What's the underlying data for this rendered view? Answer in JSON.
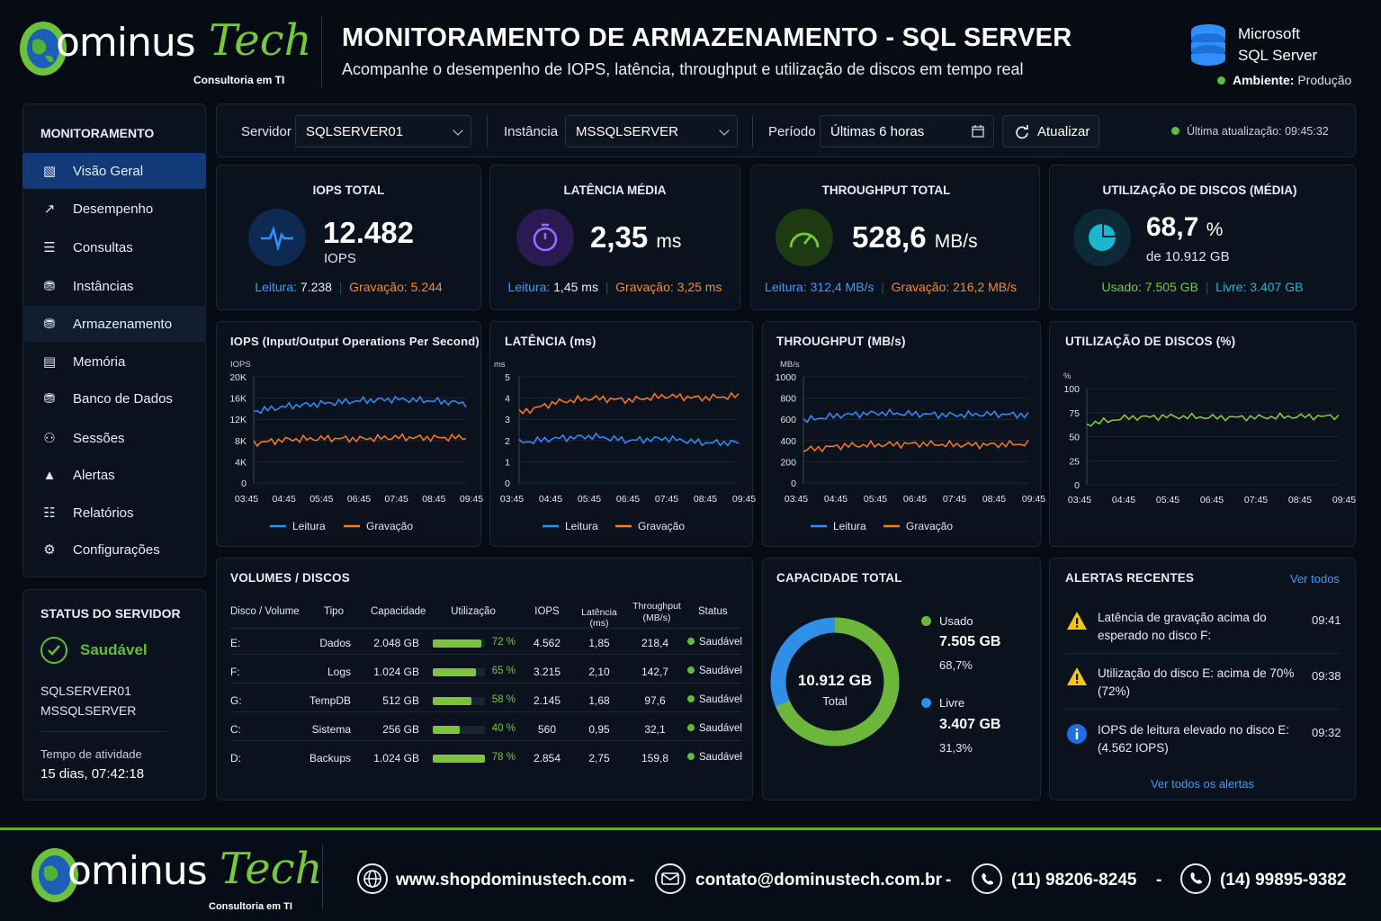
{
  "brand": {
    "name_a": "ominus",
    "name_b": "Tech",
    "tagline": "Consultoria em TI"
  },
  "header": {
    "title": "MONITORAMENTO DE ARMAZENAMENTO - SQL SERVER",
    "subtitle": "Acompanhe o desempenho de IOPS, latência, throughput e utilização de discos em tempo real",
    "product_line1": "Microsoft",
    "product_line2": "SQL Server",
    "env_label": "Ambiente:",
    "env_value": "Produção"
  },
  "sidebar": {
    "section": "MONITORAMENTO",
    "items": [
      {
        "label": "Visão Geral",
        "icon": "dashboard-icon"
      },
      {
        "label": "Desempenho",
        "icon": "line-chart-icon"
      },
      {
        "label": "Consultas",
        "icon": "list-icon"
      },
      {
        "label": "Instâncias",
        "icon": "database-icon"
      },
      {
        "label": "Armazenamento",
        "icon": "storage-icon"
      },
      {
        "label": "Memória",
        "icon": "memory-icon"
      },
      {
        "label": "Banco de Dados",
        "icon": "database-icon"
      },
      {
        "label": "Sessões",
        "icon": "users-icon"
      },
      {
        "label": "Alertas",
        "icon": "warning-icon"
      },
      {
        "label": "Relatórios",
        "icon": "report-icon"
      },
      {
        "label": "Configurações",
        "icon": "gear-icon"
      }
    ],
    "status": {
      "title": "STATUS DO SERVIDOR",
      "state": "Saudável",
      "server": "SQLSERVER01",
      "instance": "MSSQLSERVER",
      "uptime_label": "Tempo de atividade",
      "uptime": "15 dias, 07:42:18"
    }
  },
  "filters": {
    "server_label": "Servidor",
    "server_value": "SQLSERVER01",
    "instance_label": "Instância",
    "instance_value": "MSSQLSERVER",
    "period_label": "Período",
    "period_value": "Últimas 6 horas",
    "refresh": "Atualizar",
    "last_update": "Última atualização: 09:45:32"
  },
  "kpis": {
    "iops": {
      "label": "IOPS TOTAL",
      "value": "12.482",
      "unit": "IOPS",
      "read_label": "Leitura:",
      "read": "7.238",
      "write_label": "Gravação:",
      "write": "5.244"
    },
    "latency": {
      "label": "LATÊNCIA MÉDIA",
      "value": "2,35",
      "unit": "ms",
      "read_label": "Leitura:",
      "read": "1,45 ms",
      "write_label": "Gravação:",
      "write": "3,25 ms"
    },
    "throughput": {
      "label": "THROUGHPUT TOTAL",
      "value": "528,6",
      "unit": "MB/s",
      "read_label": "Leitura:",
      "read": "312,4 MB/s",
      "write_label": "Gravação:",
      "write": "216,2 MB/s"
    },
    "usage": {
      "label": "UTILIZAÇÃO DE DISCOS (MÉDIA)",
      "value": "68,7",
      "unit": "%",
      "sub": "de 10.912 GB",
      "used_label": "Usado:",
      "used": "7.505 GB",
      "free_label": "Livre:",
      "free": "3.407 GB"
    }
  },
  "colors": {
    "read": "#2f8fff",
    "write": "#ff7a1a",
    "usage": "#8bd13a",
    "free": "#2f8fe8"
  },
  "chart_data": [
    {
      "type": "line",
      "title": "IOPS (Input/Output Operations Per Second)",
      "ylabel": "IOPS",
      "ylim": [
        0,
        20000
      ],
      "yticks": [
        "0",
        "4K",
        "8K",
        "12K",
        "16K",
        "20K"
      ],
      "x": [
        "03:45",
        "04:45",
        "05:45",
        "06:45",
        "07:45",
        "08:45",
        "09:45"
      ],
      "series": [
        {
          "name": "Leitura",
          "values": [
            13500,
            14500,
            15000,
            15500,
            15800,
            15500,
            15000
          ]
        },
        {
          "name": "Gravação",
          "values": [
            7500,
            8200,
            8400,
            8300,
            8600,
            8500,
            8600
          ]
        }
      ]
    },
    {
      "type": "line",
      "title": "LATÊNCIA (ms)",
      "ylabel": "ms",
      "ylim": [
        0,
        5
      ],
      "yticks": [
        "0",
        "1",
        "2",
        "3",
        "4",
        "5"
      ],
      "x": [
        "03:45",
        "04:45",
        "05:45",
        "06:45",
        "07:45",
        "08:45",
        "09:45"
      ],
      "series": [
        {
          "name": "Leitura",
          "values": [
            1.9,
            2.1,
            2.2,
            2.0,
            2.1,
            1.9,
            1.9
          ]
        },
        {
          "name": "Gravação",
          "values": [
            3.3,
            3.8,
            4.0,
            3.9,
            4.1,
            4.0,
            4.1
          ]
        }
      ]
    },
    {
      "type": "line",
      "title": "THROUGHPUT (MB/s)",
      "ylabel": "MB/s",
      "ylim": [
        0,
        1000
      ],
      "yticks": [
        "0",
        "200",
        "400",
        "600",
        "800",
        "1000"
      ],
      "x": [
        "03:45",
        "04:45",
        "05:45",
        "06:45",
        "07:45",
        "08:45",
        "09:45"
      ],
      "series": [
        {
          "name": "Leitura",
          "values": [
            590,
            640,
            660,
            650,
            640,
            650,
            640
          ]
        },
        {
          "name": "Gravação",
          "values": [
            310,
            350,
            360,
            370,
            360,
            360,
            370
          ]
        }
      ]
    },
    {
      "type": "line",
      "title": "UTILIZAÇÃO DE DISCOS (%)",
      "ylabel": "%",
      "ylim": [
        0,
        100
      ],
      "yticks": [
        "0",
        "25",
        "50",
        "75",
        "100"
      ],
      "x": [
        "03:45",
        "04:45",
        "05:45",
        "06:45",
        "07:45",
        "08:45",
        "09:45"
      ],
      "series": [
        {
          "values": [
            63,
            70,
            71,
            70,
            70,
            71,
            71
          ]
        }
      ]
    }
  ],
  "volumes": {
    "title": "VOLUMES / DISCOS",
    "headers": [
      "Disco / Volume",
      "Tipo",
      "Capacidade",
      "Utilização",
      "IOPS",
      "Latência (ms)",
      "Throughput (MB/s)",
      "Status"
    ],
    "rows": [
      {
        "disk": "E:",
        "type": "Dados",
        "cap": "2.048 GB",
        "util": 72,
        "util_text": "72 %",
        "iops": "4.562",
        "lat": "1,85",
        "thr": "218,4",
        "status": "Saudável"
      },
      {
        "disk": "F:",
        "type": "Logs",
        "cap": "1.024 GB",
        "util": 65,
        "util_text": "65 %",
        "iops": "3.215",
        "lat": "2,10",
        "thr": "142,7",
        "status": "Saudável"
      },
      {
        "disk": "G:",
        "type": "TempDB",
        "cap": "512 GB",
        "util": 58,
        "util_text": "58 %",
        "iops": "2.145",
        "lat": "1,68",
        "thr": "97,6",
        "status": "Saudável"
      },
      {
        "disk": "C:",
        "type": "Sistema",
        "cap": "256 GB",
        "util": 40,
        "util_text": "40 %",
        "iops": "560",
        "lat": "0,95",
        "thr": "32,1",
        "status": "Saudável"
      },
      {
        "disk": "D:",
        "type": "Backups",
        "cap": "1.024 GB",
        "util": 78,
        "util_text": "78 %",
        "iops": "2.854",
        "lat": "2,75",
        "thr": "159,8",
        "status": "Saudável"
      }
    ]
  },
  "capacity": {
    "title": "CAPACIDADE TOTAL",
    "total": "10.912 GB",
    "total_label": "Total",
    "used_label": "Usado",
    "used": "7.505 GB",
    "used_pct": "68,7%",
    "used_frac": 0.687,
    "free_label": "Livre",
    "free": "3.407 GB",
    "free_pct": "31,3%"
  },
  "alerts": {
    "title": "ALERTAS RECENTES",
    "see_all": "Ver todos",
    "see_all_alerts": "Ver todos os alertas",
    "items": [
      {
        "icon": "warning-icon",
        "text": "Latência de gravação acima do esperado no disco F:",
        "time": "09:41"
      },
      {
        "icon": "warning-icon",
        "text": "Utilização do disco E: acima de 70% (72%)",
        "time": "09:38"
      },
      {
        "icon": "info-icon",
        "text": "IOPS de leitura elevado no disco E: (4.562 IOPS)",
        "time": "09:32"
      }
    ]
  },
  "footer": {
    "site": "www.shopdominustech.com",
    "email": "contato@dominustech.com.br",
    "phone1": "(11) 98206-8245",
    "phone2": "(14) 99895-9382",
    "sep": "-"
  }
}
